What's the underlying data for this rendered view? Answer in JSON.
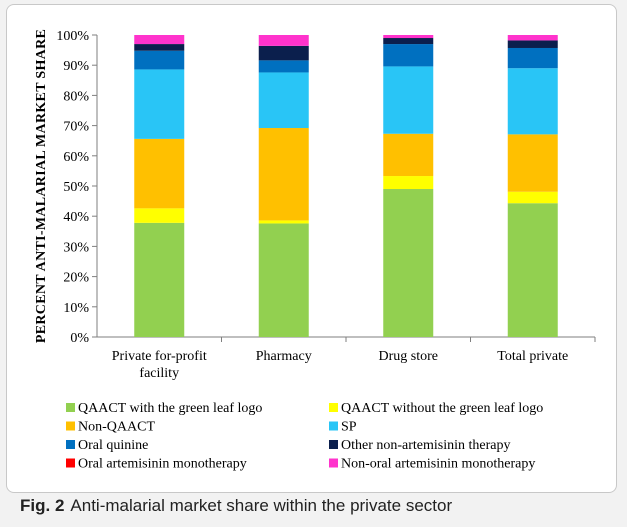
{
  "chart_data": {
    "type": "bar",
    "stacked": true,
    "ylabel": "PERCENT ANTI-MALARIAL MARKET SHARE",
    "ylim": [
      0,
      100
    ],
    "ytick_labels": [
      "0%",
      "10%",
      "20%",
      "30%",
      "40%",
      "50%",
      "60%",
      "70%",
      "80%",
      "90%",
      "100%"
    ],
    "categories": [
      [
        "Private for-profit",
        "facility"
      ],
      [
        "Pharmacy"
      ],
      [
        "Drug store"
      ],
      [
        "Total private"
      ]
    ],
    "legend_position": "bottom",
    "series": [
      {
        "name": "QAACT with the green leaf logo",
        "color": "#92d050",
        "values": [
          37.8,
          37.6,
          49.0,
          44.3
        ]
      },
      {
        "name": "QAACT without the green leaf logo",
        "color": "#ffff00",
        "values": [
          4.8,
          1.0,
          4.3,
          3.8
        ]
      },
      {
        "name": "Non-QAACT",
        "color": "#ffc000",
        "values": [
          23.0,
          30.6,
          14.0,
          19.0
        ]
      },
      {
        "name": "SP",
        "color": "#29c5f6",
        "values": [
          23.0,
          18.4,
          22.3,
          21.9
        ]
      },
      {
        "name": "Oral quinine",
        "color": "#0070c0",
        "values": [
          6.2,
          4.0,
          7.4,
          6.7
        ]
      },
      {
        "name": "Other non-artemisinin therapy",
        "color": "#0b1f4d",
        "values": [
          2.2,
          4.8,
          2.0,
          2.5
        ]
      },
      {
        "name": "Oral artemisinin monotherapy",
        "color": "#ff0000",
        "values": [
          0.0,
          0.0,
          0.0,
          0.0
        ]
      },
      {
        "name": "Non-oral artemisinin monotherapy",
        "color": "#ff33cc",
        "values": [
          3.0,
          3.6,
          1.0,
          1.8
        ]
      }
    ]
  },
  "caption": {
    "fig_label": "Fig. 2",
    "text": "Anti-malarial market share within the private sector"
  }
}
